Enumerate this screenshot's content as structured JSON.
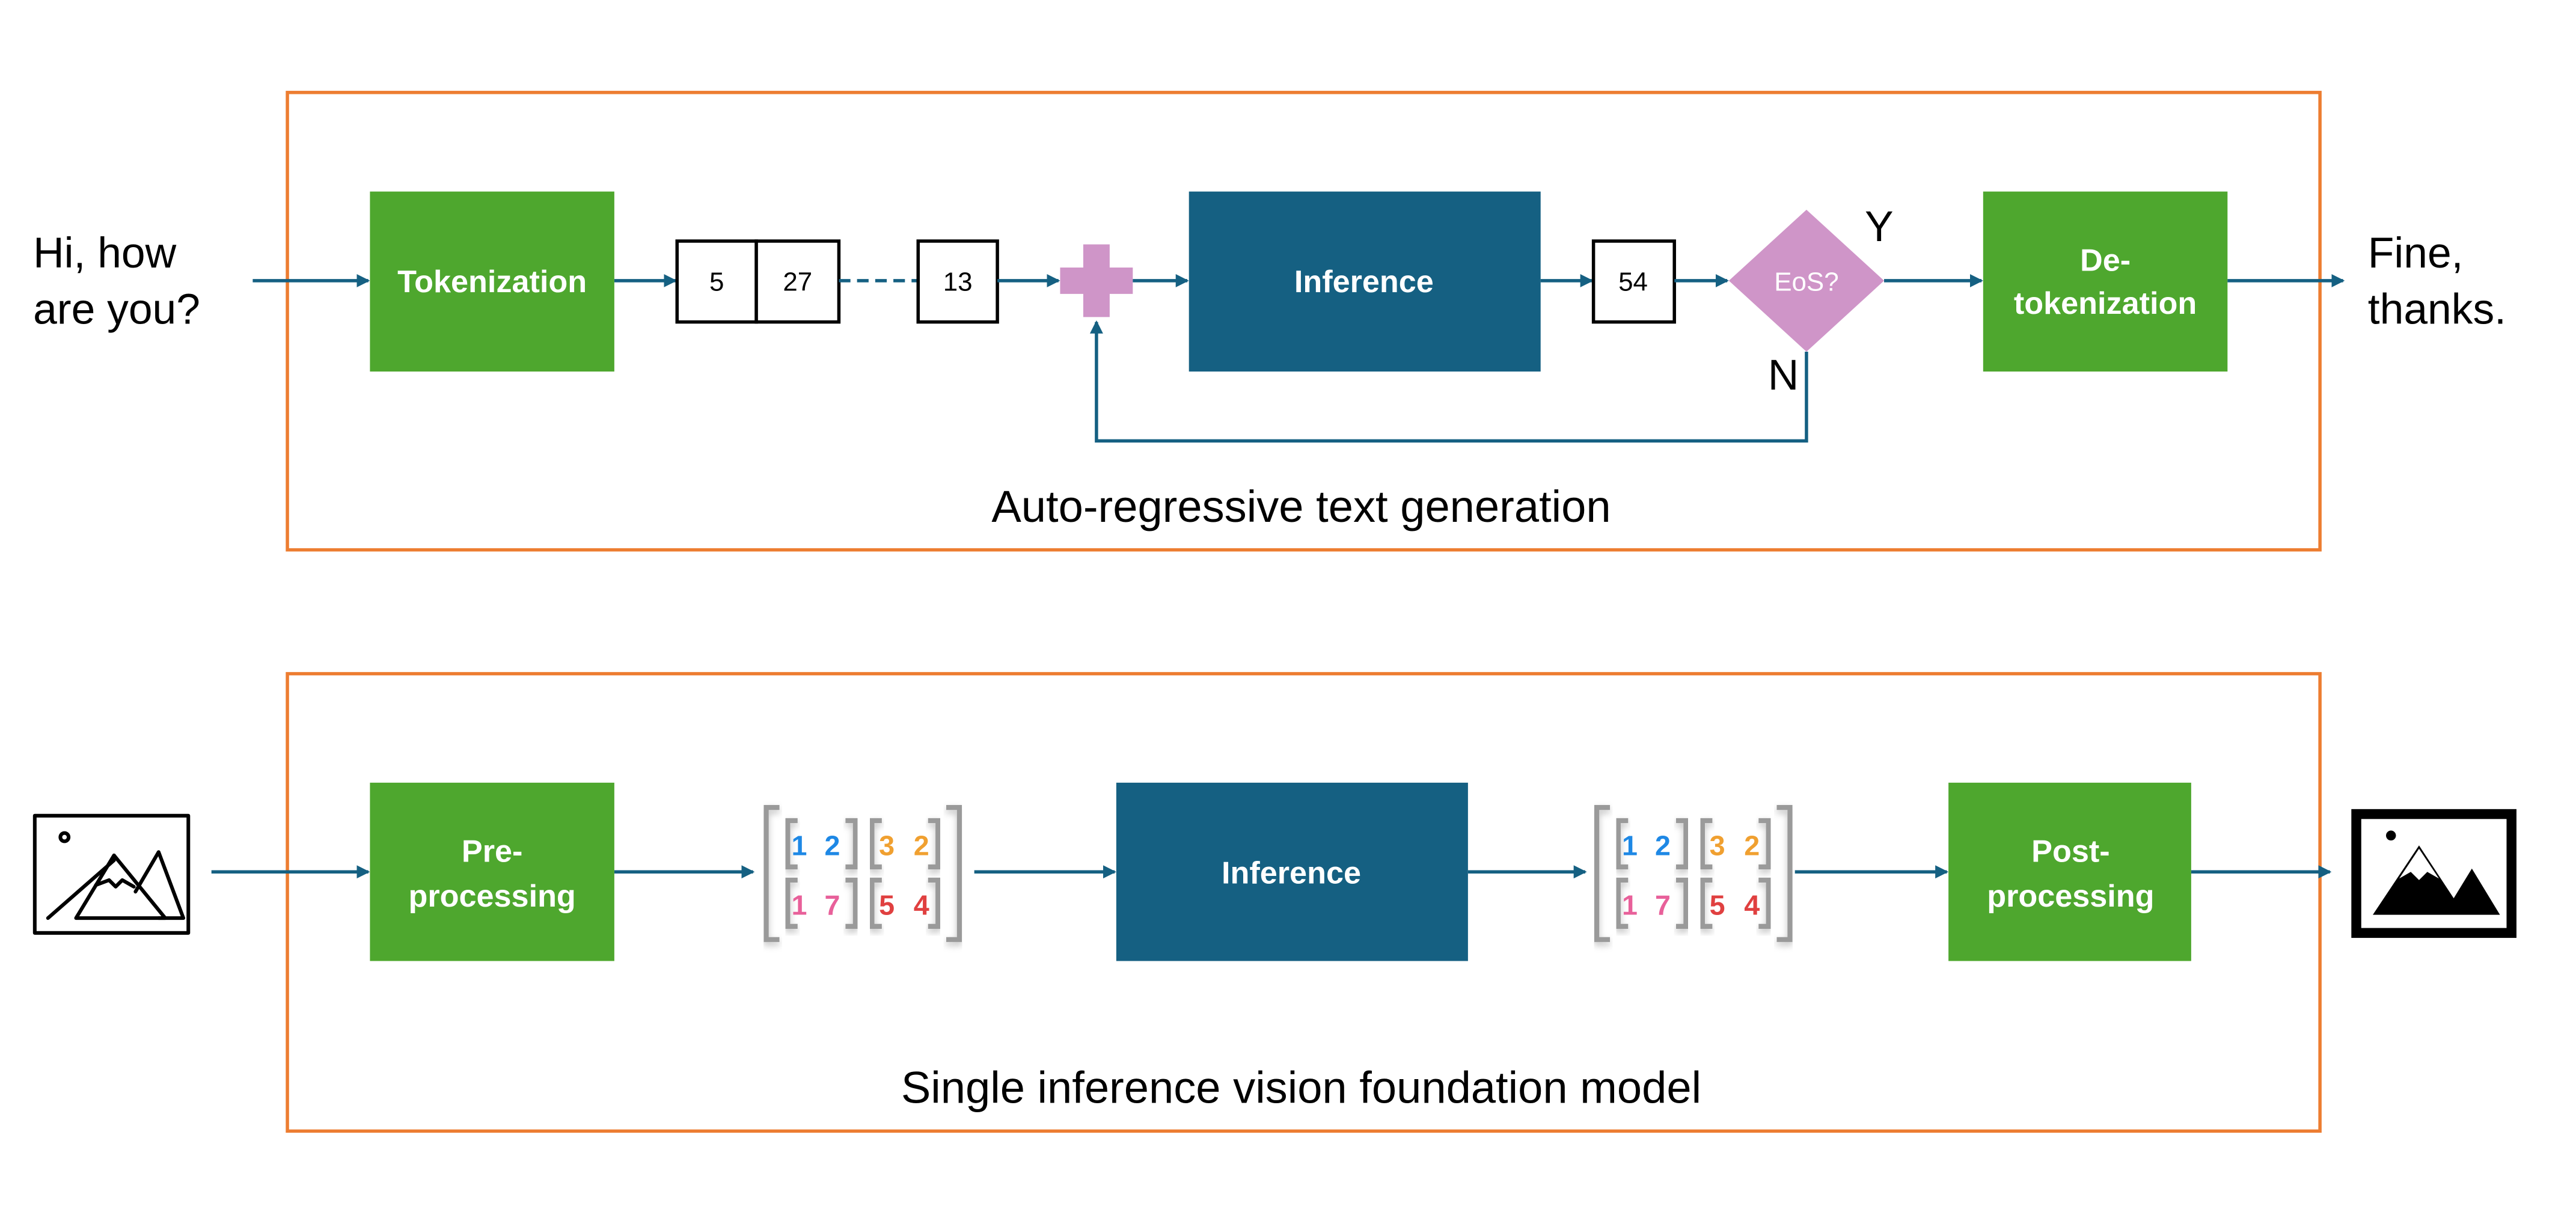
{
  "colors": {
    "frame": "#ED7D31",
    "process_green": "#4EA72E",
    "inference_blue": "#156082",
    "arrow": "#156082",
    "decision_pink": "#CF95C8",
    "matrix_blue": "#1E88E5",
    "matrix_orange": "#F0A030",
    "matrix_pink": "#E8609A",
    "matrix_red": "#E04040"
  },
  "text_generation": {
    "input_line1": "Hi, how",
    "input_line2": "are you?",
    "tokenization": "Tokenization",
    "tokens": [
      "5",
      "27",
      "13"
    ],
    "plus_icon": "plus-icon",
    "inference": "Inference",
    "output_token": "54",
    "decision": "EoS?",
    "yes": "Y",
    "no": "N",
    "detokenization_line1": "De-",
    "detokenization_line2": "tokenization",
    "output_line1": "Fine,",
    "output_line2": "thanks.",
    "caption": "Auto-regressive text generation"
  },
  "vision": {
    "input_icon": "image-outline-icon",
    "preprocessing_line1": "Pre-",
    "preprocessing_line2": "processing",
    "matrix": [
      [
        "1",
        "2",
        "3",
        "2"
      ],
      [
        "1",
        "7",
        "5",
        "4"
      ]
    ],
    "inference": "Inference",
    "postprocessing_line1": "Post-",
    "postprocessing_line2": "processing",
    "output_icon": "image-filled-icon",
    "caption": "Single inference vision foundation model"
  }
}
